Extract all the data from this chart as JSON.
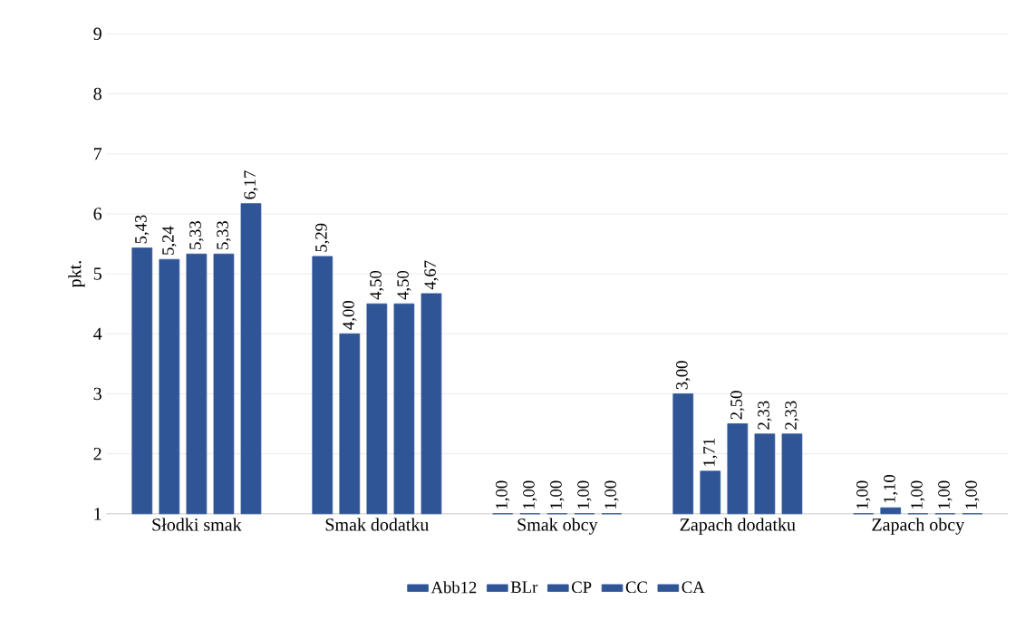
{
  "chart_data": {
    "type": "bar",
    "ylabel": "pkt.",
    "categories": [
      "Słodki smak",
      "Smak dodatku",
      "Smak obcy",
      "Zapach dodatku",
      "Zapach obcy"
    ],
    "series": [
      {
        "name": "Abb12",
        "color": "#2f5597",
        "values": [
          5.43,
          5.29,
          1.0,
          3.0,
          1.0
        ],
        "value_labels": [
          "5,43",
          "5,29",
          "1,00",
          "3,00",
          "1,00"
        ]
      },
      {
        "name": "BLr",
        "color": "#2f5597",
        "values": [
          5.24,
          4.0,
          1.0,
          1.71,
          1.1
        ],
        "value_labels": [
          "5,24",
          "4,00",
          "1,00",
          "1,71",
          "1,10"
        ]
      },
      {
        "name": "CP",
        "color": "#2f5597",
        "values": [
          5.33,
          4.5,
          1.0,
          2.5,
          1.0
        ],
        "value_labels": [
          "5,33",
          "4,50",
          "1,00",
          "2,50",
          "1,00"
        ]
      },
      {
        "name": "CC",
        "color": "#2f5597",
        "values": [
          5.33,
          4.5,
          1.0,
          2.33,
          1.0
        ],
        "value_labels": [
          "5,33",
          "4,50",
          "1,00",
          "2,33",
          "1,00"
        ]
      },
      {
        "name": "CA",
        "color": "#2f5597",
        "values": [
          6.17,
          4.67,
          1.0,
          2.33,
          1.0
        ],
        "value_labels": [
          "6,17",
          "4,67",
          "1,00",
          "2,33",
          "1,00"
        ]
      }
    ],
    "ylim": [
      1,
      9
    ],
    "yticks": [
      1,
      2,
      3,
      4,
      5,
      6,
      7,
      8,
      9
    ],
    "grid": "y",
    "legend": "bottom"
  }
}
